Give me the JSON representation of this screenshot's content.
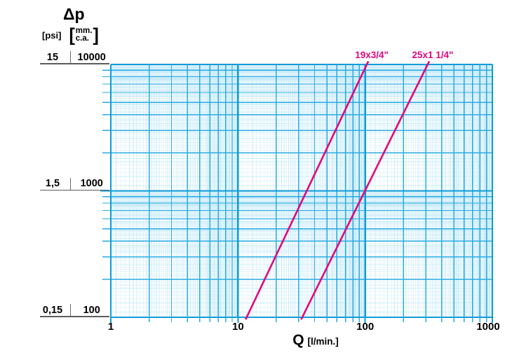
{
  "title": "Δp",
  "header": {
    "unit_psi": "[psi]",
    "unit_mm_lines": [
      "mm.",
      "c.a."
    ],
    "bracket_open": "[",
    "bracket_close": "]"
  },
  "x_axis": {
    "title": "Q",
    "unit": "[l/min.]",
    "tick_labels": [
      "1",
      "10",
      "100",
      "1000"
    ],
    "tick_values": [
      1,
      10,
      100,
      1000
    ]
  },
  "y_axis": {
    "rows": [
      {
        "psi": "15",
        "mm": "10000",
        "value": 10000
      },
      {
        "psi": "1,5",
        "mm": "1000",
        "value": 1000
      },
      {
        "psi": "0,15",
        "mm": "100",
        "value": 100
      }
    ]
  },
  "chart_data": {
    "type": "line",
    "title": "Pressure drop vs flow rate",
    "x_scale": "log",
    "y_scale": "log",
    "x_range": [
      1,
      1000
    ],
    "y_range": [
      100,
      10000
    ],
    "xlabel": "Q [l/min.]",
    "ylabel": "Δp  [psi] / [mm. c.a.]",
    "grid": "log-log fine graph-paper grid",
    "legend_position": "labels above curve tops",
    "series": [
      {
        "name": "19x3/4\"",
        "points": [
          [
            11.7,
            100
          ],
          [
            103,
            10000
          ]
        ]
      },
      {
        "name": "25x1 1/4\"",
        "points": [
          [
            32,
            100
          ],
          [
            310,
            10000
          ]
        ]
      }
    ]
  },
  "colors": {
    "background": "#ffffff",
    "grid_minor": "#cdecf9",
    "grid_major": "#29abe2",
    "grid_decade": "#0f9cd8",
    "curve": "#e2077c",
    "text": "#000000",
    "callout": "#5c5c5c"
  }
}
